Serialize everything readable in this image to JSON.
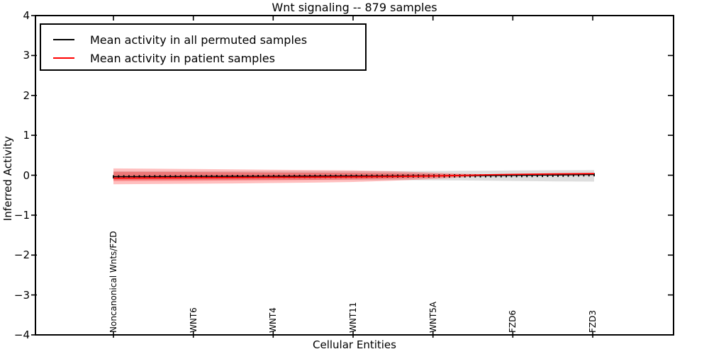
{
  "chart_data": {
    "type": "line",
    "title": "Wnt signaling -- 879 samples",
    "xlabel": "Cellular Entities",
    "ylabel": "Inferred Activity",
    "ylim": [
      -4,
      4
    ],
    "xlim_note": "categorical axis of cellular entities, only some labeled",
    "grid": false,
    "ytick_values": [
      4,
      3,
      2,
      1,
      0,
      -1,
      -2,
      -3,
      -4
    ],
    "ytick_labels": [
      "4",
      "3",
      "2",
      "1",
      "0",
      "−1",
      "−2",
      "−3",
      "−4"
    ],
    "x_axis": {
      "labeled_entities": [
        "Noncanonical Wnts/FZD",
        "WNT6",
        "WNT4",
        "WNT11",
        "WNT5A",
        "FZD6",
        "FZD3"
      ],
      "n_points": 94
    },
    "legend": {
      "position": "upper left"
    },
    "t_stops": [
      0,
      0.08,
      0.17,
      0.25,
      0.33,
      0.42,
      0.5,
      0.58,
      0.67,
      0.72,
      0.78,
      0.83,
      0.92,
      1.0
    ],
    "series": [
      {
        "name": "Mean activity in all permuted samples",
        "color": "#000000",
        "line_width": 1.4,
        "markers": true,
        "values": [
          -0.035,
          -0.033,
          -0.03,
          -0.027,
          -0.025,
          -0.022,
          -0.019,
          -0.016,
          -0.013,
          -0.011,
          -0.009,
          -0.006,
          0.003,
          0.018
        ]
      },
      {
        "name": "Mean activity in patient samples",
        "color": "#ff0000",
        "line_width": 1.8,
        "markers": false,
        "values": [
          -0.072,
          -0.068,
          -0.063,
          -0.058,
          -0.053,
          -0.048,
          -0.042,
          -0.033,
          -0.018,
          -0.005,
          0.01,
          0.02,
          0.032,
          0.04
        ]
      }
    ],
    "bands": [
      {
        "name": "permuted-samples-range",
        "color": "#000000",
        "opacity": 0.13,
        "hi": [
          0.1,
          0.1,
          0.1,
          0.1,
          0.1,
          0.1,
          0.1,
          0.102,
          0.106,
          0.11,
          0.114,
          0.118,
          0.126,
          0.13
        ],
        "lo": [
          -0.12,
          -0.12,
          -0.12,
          -0.12,
          -0.12,
          -0.12,
          -0.12,
          -0.122,
          -0.127,
          -0.132,
          -0.138,
          -0.144,
          -0.155,
          -0.16
        ]
      },
      {
        "name": "patient-samples-range-outer",
        "color": "#ff0000",
        "opacity": 0.25,
        "hi": [
          0.17,
          0.163,
          0.155,
          0.146,
          0.137,
          0.128,
          0.118,
          0.1,
          0.062,
          0.04,
          0.022,
          0.022,
          0.032,
          0.042
        ],
        "lo": [
          -0.225,
          -0.22,
          -0.213,
          -0.205,
          -0.196,
          -0.185,
          -0.168,
          -0.138,
          -0.09,
          -0.058,
          -0.02,
          0.002,
          0.03,
          0.04
        ]
      },
      {
        "name": "patient-samples-range-inner",
        "color": "#ff0000",
        "opacity": 0.28,
        "hi": [
          0.085,
          0.082,
          0.078,
          0.073,
          0.068,
          0.062,
          0.056,
          0.048,
          0.03,
          0.02,
          0.015,
          0.02,
          0.031,
          0.041
        ],
        "lo": [
          -0.145,
          -0.142,
          -0.138,
          -0.132,
          -0.124,
          -0.115,
          -0.103,
          -0.085,
          -0.055,
          -0.032,
          -0.012,
          0.002,
          0.03,
          0.04
        ]
      }
    ]
  }
}
